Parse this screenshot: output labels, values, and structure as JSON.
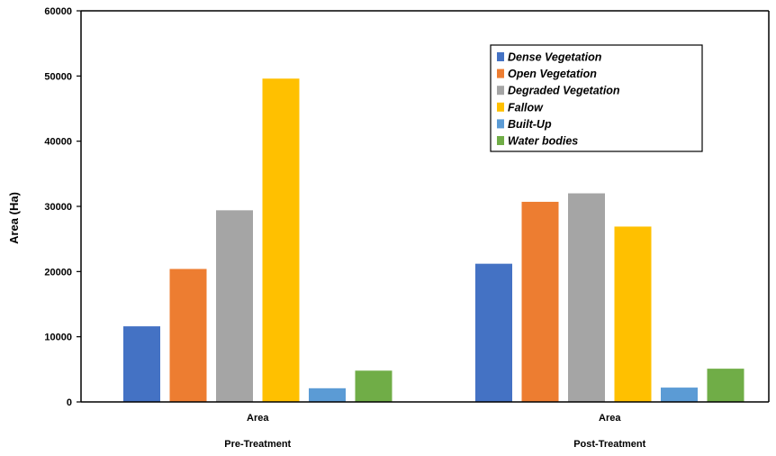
{
  "chart_data": {
    "type": "bar",
    "ylabel": "Area (Ha)",
    "ylim": [
      0,
      60000
    ],
    "yticks": [
      "0",
      "10000",
      "20000",
      "30000",
      "40000",
      "50000",
      "60000"
    ],
    "grid": false,
    "legend_position": "top-right",
    "groups": [
      {
        "x_label": "Area",
        "group_label": "Pre-Treatment"
      },
      {
        "x_label": "Area",
        "group_label": "Post-Treatment"
      }
    ],
    "series": [
      {
        "name": "Dense Vegetation",
        "color": "#4472C4",
        "values": [
          11600,
          21200
        ]
      },
      {
        "name": "Open Vegetation",
        "color": "#ED7D31",
        "values": [
          20400,
          30700
        ]
      },
      {
        "name": "Degraded Vegetation",
        "color": "#A5A5A5",
        "values": [
          29400,
          32000
        ]
      },
      {
        "name": "Fallow",
        "color": "#FFC000",
        "values": [
          49600,
          26900
        ]
      },
      {
        "name": "Built-Up",
        "color": "#5B9BD5",
        "values": [
          2100,
          2200
        ]
      },
      {
        "name": "Water bodies",
        "color": "#70AD47",
        "values": [
          4800,
          5100
        ]
      }
    ]
  }
}
